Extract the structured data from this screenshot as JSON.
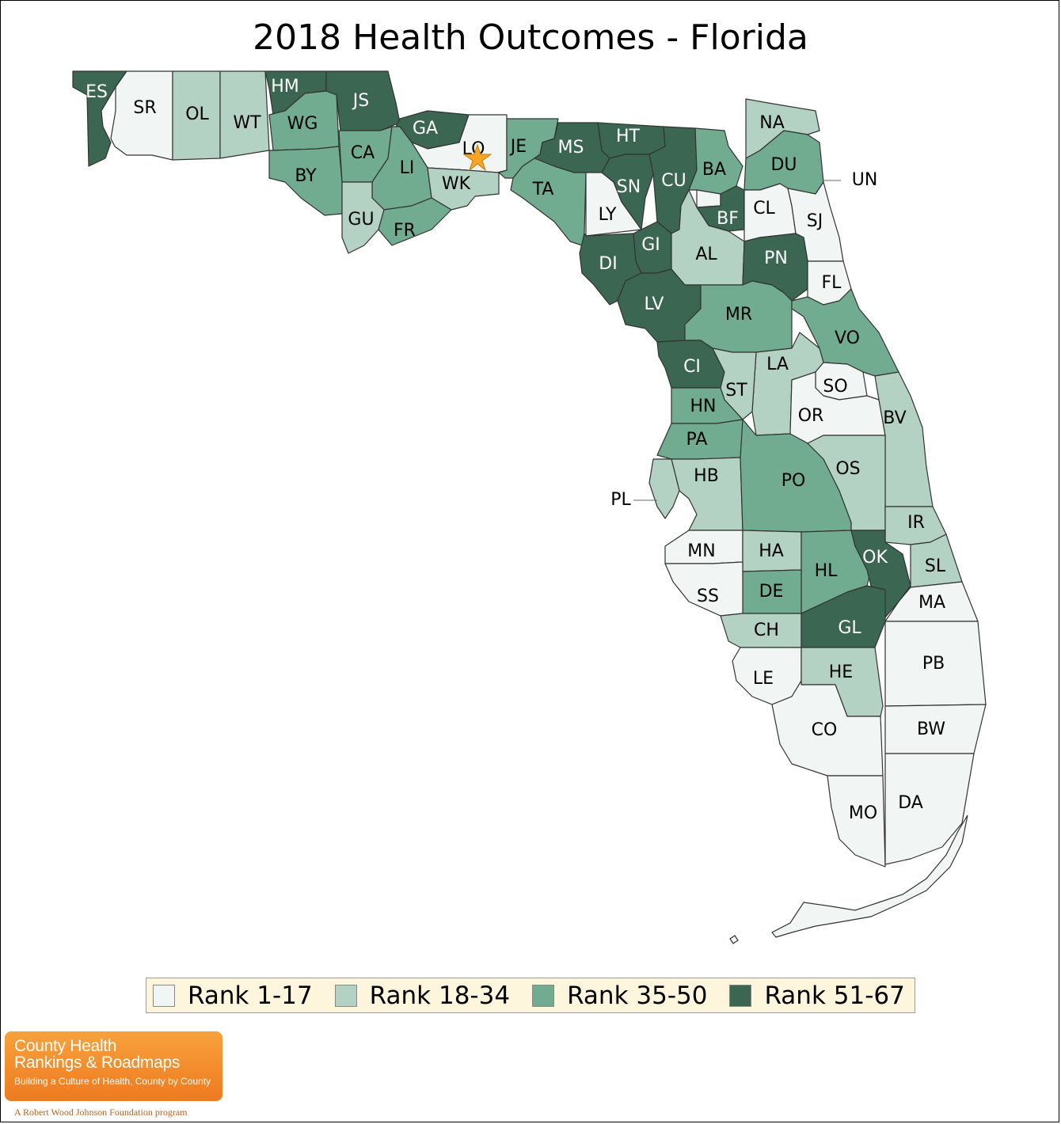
{
  "title": "2018 Health Outcomes - Florida",
  "legend": [
    {
      "label": "Rank 1-17",
      "color": "#f1f5f3"
    },
    {
      "label": "Rank 18-34",
      "color": "#b3d2c3"
    },
    {
      "label": "Rank 35-50",
      "color": "#71ab90"
    },
    {
      "label": "Rank 51-67",
      "color": "#3a6652"
    }
  ],
  "counties": [
    {
      "code": "ES",
      "tier": 3
    },
    {
      "code": "SR",
      "tier": 0
    },
    {
      "code": "OL",
      "tier": 1
    },
    {
      "code": "WT",
      "tier": 1
    },
    {
      "code": "HM",
      "tier": 3
    },
    {
      "code": "JS",
      "tier": 3
    },
    {
      "code": "WG",
      "tier": 2
    },
    {
      "code": "BY",
      "tier": 2
    },
    {
      "code": "CA",
      "tier": 2
    },
    {
      "code": "GA",
      "tier": 3
    },
    {
      "code": "LO",
      "tier": 0
    },
    {
      "code": "LI",
      "tier": 2
    },
    {
      "code": "WK",
      "tier": 1
    },
    {
      "code": "GU",
      "tier": 1
    },
    {
      "code": "FR",
      "tier": 2
    },
    {
      "code": "JE",
      "tier": 2
    },
    {
      "code": "MS",
      "tier": 3
    },
    {
      "code": "HT",
      "tier": 3
    },
    {
      "code": "TA",
      "tier": 2
    },
    {
      "code": "LY",
      "tier": 0
    },
    {
      "code": "SN",
      "tier": 3
    },
    {
      "code": "CU",
      "tier": 3
    },
    {
      "code": "BA",
      "tier": 2
    },
    {
      "code": "NA",
      "tier": 1
    },
    {
      "code": "DU",
      "tier": 2
    },
    {
      "code": "UN",
      "tier": 0
    },
    {
      "code": "BF",
      "tier": 3
    },
    {
      "code": "CL",
      "tier": 0
    },
    {
      "code": "SJ",
      "tier": 0
    },
    {
      "code": "DI",
      "tier": 3
    },
    {
      "code": "GI",
      "tier": 3
    },
    {
      "code": "AL",
      "tier": 1
    },
    {
      "code": "PN",
      "tier": 3
    },
    {
      "code": "FL",
      "tier": 0
    },
    {
      "code": "LV",
      "tier": 3
    },
    {
      "code": "MR",
      "tier": 2
    },
    {
      "code": "VO",
      "tier": 2
    },
    {
      "code": "CI",
      "tier": 3
    },
    {
      "code": "LA",
      "tier": 1
    },
    {
      "code": "ST",
      "tier": 1
    },
    {
      "code": "SO",
      "tier": 0
    },
    {
      "code": "HN",
      "tier": 2
    },
    {
      "code": "OR",
      "tier": 0
    },
    {
      "code": "BV",
      "tier": 1
    },
    {
      "code": "PA",
      "tier": 2
    },
    {
      "code": "HB",
      "tier": 1
    },
    {
      "code": "PO",
      "tier": 2
    },
    {
      "code": "OS",
      "tier": 1
    },
    {
      "code": "PL",
      "tier": 1
    },
    {
      "code": "IR",
      "tier": 1
    },
    {
      "code": "MN",
      "tier": 0
    },
    {
      "code": "HA",
      "tier": 1
    },
    {
      "code": "HL",
      "tier": 2
    },
    {
      "code": "OK",
      "tier": 3
    },
    {
      "code": "SL",
      "tier": 1
    },
    {
      "code": "DE",
      "tier": 2
    },
    {
      "code": "SS",
      "tier": 0
    },
    {
      "code": "MA",
      "tier": 0
    },
    {
      "code": "CH",
      "tier": 1
    },
    {
      "code": "GL",
      "tier": 3
    },
    {
      "code": "PB",
      "tier": 0
    },
    {
      "code": "LE",
      "tier": 0
    },
    {
      "code": "HE",
      "tier": 1
    },
    {
      "code": "CO",
      "tier": 0
    },
    {
      "code": "BW",
      "tier": 0
    },
    {
      "code": "MO",
      "tier": 0
    },
    {
      "code": "DA",
      "tier": 0
    }
  ],
  "logo": {
    "line1": "County Health",
    "line2": "Rankings & Roadmaps",
    "line3": "Building a Culture of Health, County by County"
  },
  "footer": "A Robert Wood Johnson Foundation program"
}
